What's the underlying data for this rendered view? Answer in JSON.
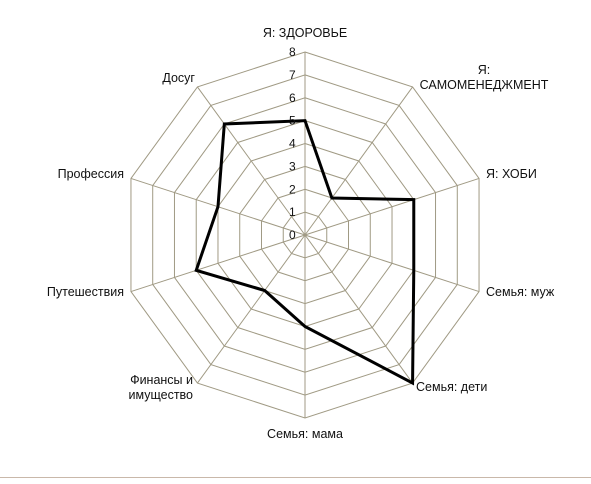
{
  "chart_data": {
    "type": "radar",
    "categories": [
      "Я: ЗДОРОВЬЕ",
      "Я:\nСАМОМЕНЕДЖМЕНТ",
      "Я: ХОБИ",
      "Семья: муж",
      "Семья: дети",
      "Семья: мама",
      "Финансы и\nимущество",
      "Путешествия",
      "Профессия",
      "Досуг"
    ],
    "series": [
      {
        "values": [
          5,
          2,
          5,
          5,
          8,
          4,
          3,
          5,
          4,
          6
        ],
        "color": "#000000"
      }
    ],
    "rlim": [
      0,
      8
    ],
    "ticks": [
      0,
      1,
      2,
      3,
      4,
      5,
      6,
      7,
      8
    ],
    "grid": true,
    "grid_color": "#a09a84",
    "legend": "none"
  }
}
